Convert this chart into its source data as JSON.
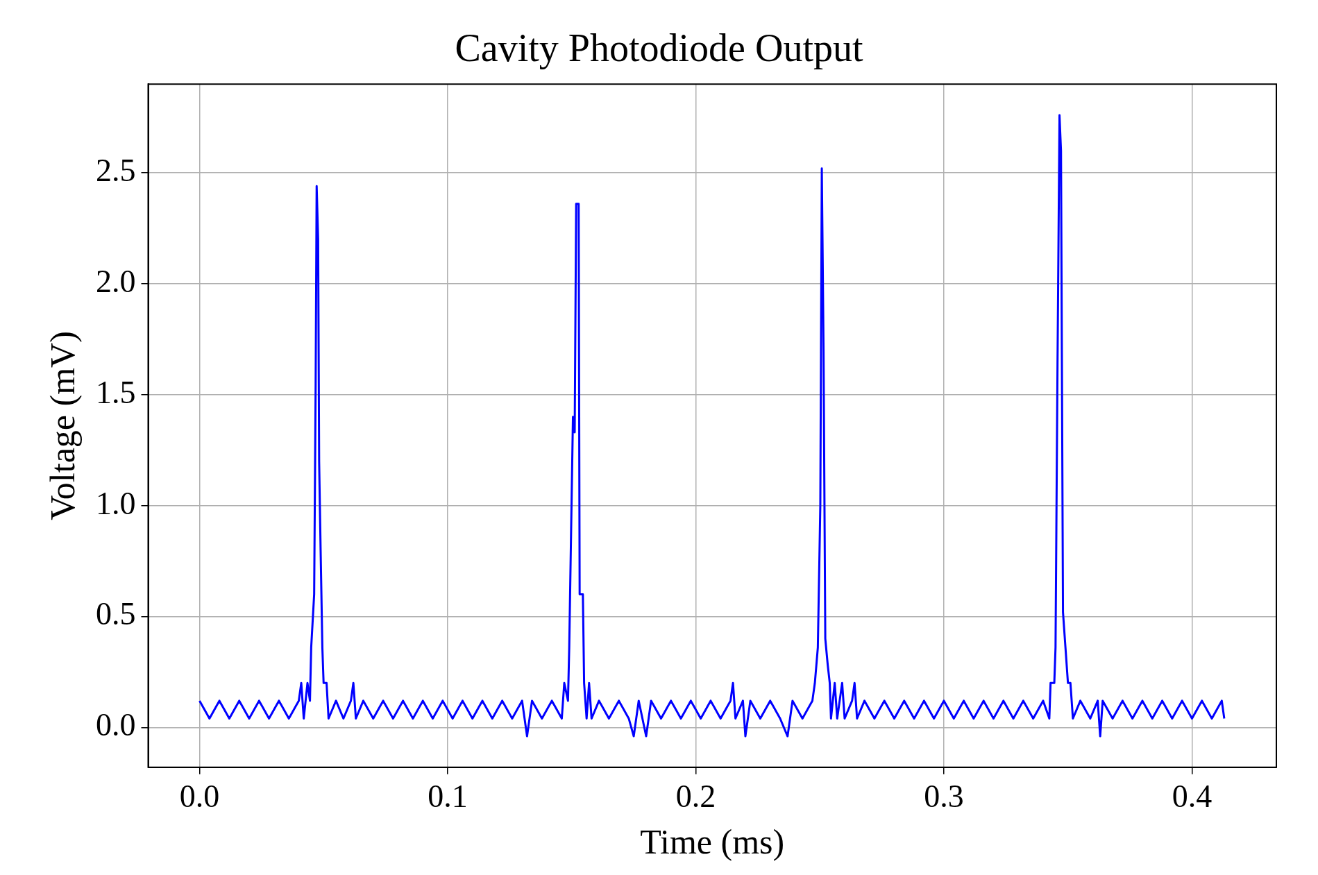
{
  "chart_data": {
    "type": "line",
    "title": "Cavity Photodiode Output",
    "xlabel": "Time (ms)",
    "ylabel": "Voltage (mV)",
    "xlim": [
      -0.0207,
      0.434
    ],
    "xticks": [
      {
        "value": 0,
        "label": "0.0"
      },
      0.1,
      0.2,
      0.3,
      0.4
    ],
    "ylim": [
      -0.18,
      2.9
    ],
    "yticks": [
      {
        "value": 0,
        "label": "0.0"
      },
      0.5,
      {
        "value": 1,
        "label": "1.0"
      },
      1.5,
      {
        "value": 2,
        "label": "2.0"
      },
      2.5
    ],
    "grid": true,
    "legend": false,
    "marker": "none",
    "line_style": "solid",
    "series": [
      {
        "color": "#0000ff",
        "x": [
          0,
          0.004,
          0.008,
          0.012,
          0.016,
          0.02,
          0.024,
          0.028,
          0.032,
          0.036,
          0.04,
          0.041,
          0.042,
          0.0435,
          0.0445,
          0.045,
          0.0462,
          0.0468,
          0.0472,
          0.0478,
          0.0482,
          0.0488,
          0.0495,
          0.05,
          0.0512,
          0.052,
          0.055,
          0.058,
          0.061,
          0.062,
          0.063,
          0.066,
          0.07,
          0.074,
          0.078,
          0.082,
          0.086,
          0.09,
          0.094,
          0.098,
          0.102,
          0.106,
          0.11,
          0.114,
          0.118,
          0.122,
          0.126,
          0.13,
          0.132,
          0.134,
          0.138,
          0.142,
          0.146,
          0.147,
          0.1485,
          0.149,
          0.1505,
          0.1512,
          0.1518,
          0.1528,
          0.1532,
          0.1545,
          0.155,
          0.156,
          0.157,
          0.158,
          0.161,
          0.165,
          0.169,
          0.173,
          0.175,
          0.177,
          0.18,
          0.182,
          0.186,
          0.19,
          0.194,
          0.198,
          0.202,
          0.206,
          0.21,
          0.214,
          0.215,
          0.216,
          0.219,
          0.22,
          0.222,
          0.226,
          0.23,
          0.234,
          0.237,
          0.239,
          0.243,
          0.247,
          0.248,
          0.2492,
          0.2502,
          0.2508,
          0.2515,
          0.2522,
          0.2532,
          0.254,
          0.2545,
          0.256,
          0.257,
          0.259,
          0.26,
          0.263,
          0.264,
          0.265,
          0.268,
          0.272,
          0.276,
          0.28,
          0.284,
          0.288,
          0.292,
          0.296,
          0.3,
          0.304,
          0.308,
          0.312,
          0.316,
          0.32,
          0.324,
          0.328,
          0.332,
          0.336,
          0.34,
          0.3425,
          0.343,
          0.3445,
          0.345,
          0.3458,
          0.3466,
          0.3472,
          0.348,
          0.349,
          0.35,
          0.351,
          0.352,
          0.355,
          0.359,
          0.362,
          0.363,
          0.364,
          0.368,
          0.372,
          0.376,
          0.38,
          0.384,
          0.388,
          0.392,
          0.396,
          0.4,
          0.404,
          0.408,
          0.412,
          0.413
        ],
        "values": [
          0.12,
          0.04,
          0.12,
          0.04,
          0.12,
          0.04,
          0.12,
          0.04,
          0.12,
          0.04,
          0.12,
          0.2,
          0.04,
          0.2,
          0.12,
          0.36,
          0.6,
          1.55,
          2.44,
          2.2,
          1.2,
          0.8,
          0.36,
          0.2,
          0.2,
          0.04,
          0.12,
          0.04,
          0.12,
          0.2,
          0.04,
          0.12,
          0.04,
          0.12,
          0.04,
          0.12,
          0.04,
          0.12,
          0.04,
          0.12,
          0.04,
          0.12,
          0.04,
          0.12,
          0.04,
          0.12,
          0.04,
          0.12,
          -0.04,
          0.12,
          0.04,
          0.12,
          0.04,
          0.2,
          0.12,
          0.36,
          1.4,
          1.33,
          2.36,
          2.36,
          0.6,
          0.6,
          0.2,
          0.04,
          0.2,
          0.04,
          0.12,
          0.04,
          0.12,
          0.04,
          -0.04,
          0.12,
          -0.04,
          0.12,
          0.04,
          0.12,
          0.04,
          0.12,
          0.04,
          0.12,
          0.04,
          0.12,
          0.2,
          0.04,
          0.12,
          -0.04,
          0.12,
          0.04,
          0.12,
          0.04,
          -0.04,
          0.12,
          0.04,
          0.12,
          0.2,
          0.36,
          1.0,
          2.52,
          1.7,
          0.4,
          0.28,
          0.2,
          0.04,
          0.2,
          0.04,
          0.2,
          0.04,
          0.12,
          0.2,
          0.04,
          0.12,
          0.04,
          0.12,
          0.04,
          0.12,
          0.04,
          0.12,
          0.04,
          0.12,
          0.04,
          0.12,
          0.04,
          0.12,
          0.04,
          0.12,
          0.04,
          0.12,
          0.04,
          0.12,
          0.04,
          0.2,
          0.2,
          0.36,
          1.64,
          2.76,
          2.6,
          0.52,
          0.36,
          0.2,
          0.2,
          0.04,
          0.12,
          0.04,
          0.12,
          -0.04,
          0.12,
          0.04,
          0.12,
          0.04,
          0.12,
          0.04,
          0.12,
          0.04,
          0.12,
          0.04,
          0.12,
          0.04,
          0.12,
          0.04
        ]
      }
    ]
  }
}
